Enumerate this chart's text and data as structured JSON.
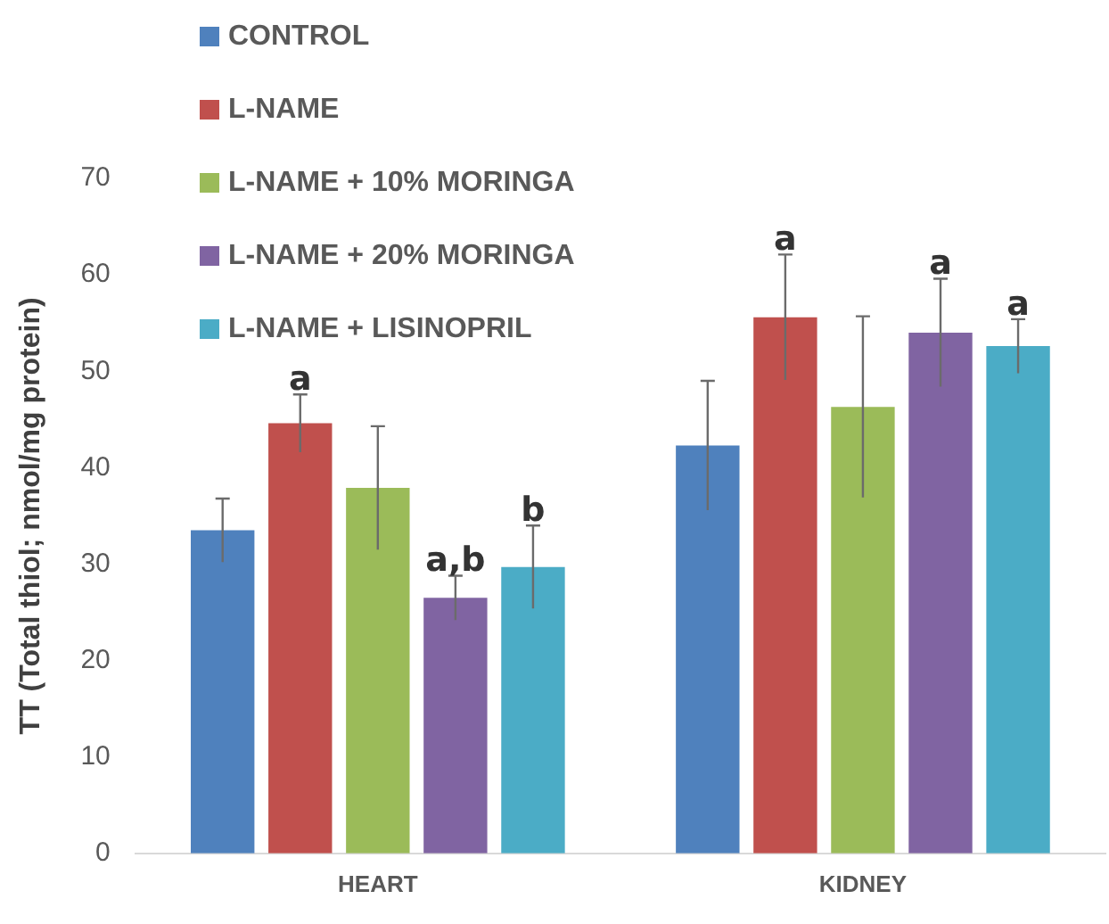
{
  "chart_data": {
    "type": "bar",
    "ylabel": "TT (Total thiol; nmol/mg protein)",
    "categories": [
      "HEART",
      "KIDNEY"
    ],
    "series": [
      {
        "name": "CONTROL",
        "color": "#4f81bd",
        "values": [
          33.5,
          42.3
        ],
        "errors": [
          3.3,
          6.7
        ],
        "value_labels": [
          null,
          null
        ]
      },
      {
        "name": "L-NAME",
        "color": "#c0504d",
        "values": [
          44.6,
          55.6
        ],
        "errors": [
          3,
          6.5
        ],
        "value_labels": [
          "a",
          "a"
        ]
      },
      {
        "name": "L-NAME + 10% MORINGA",
        "color": "#9bbb59",
        "values": [
          37.9,
          46.3
        ],
        "errors": [
          6.4,
          9.4
        ],
        "value_labels": [
          null,
          null
        ]
      },
      {
        "name": "L-NAME + 20% MORINGA",
        "color": "#8064a2",
        "values": [
          26.5,
          54
        ],
        "errors": [
          2.3,
          5.6
        ],
        "value_labels": [
          "a,b",
          "a"
        ]
      },
      {
        "name": "L-NAME + LISINOPRIL",
        "color": "#4bacc6",
        "values": [
          29.7,
          52.6
        ],
        "errors": [
          4.3,
          2.8
        ],
        "value_labels": [
          "b",
          "a"
        ]
      }
    ],
    "ylim": [
      0,
      70
    ],
    "yticks": [
      0,
      10,
      20,
      30,
      40,
      50,
      60,
      70
    ],
    "grid": false,
    "legend": "top left"
  }
}
